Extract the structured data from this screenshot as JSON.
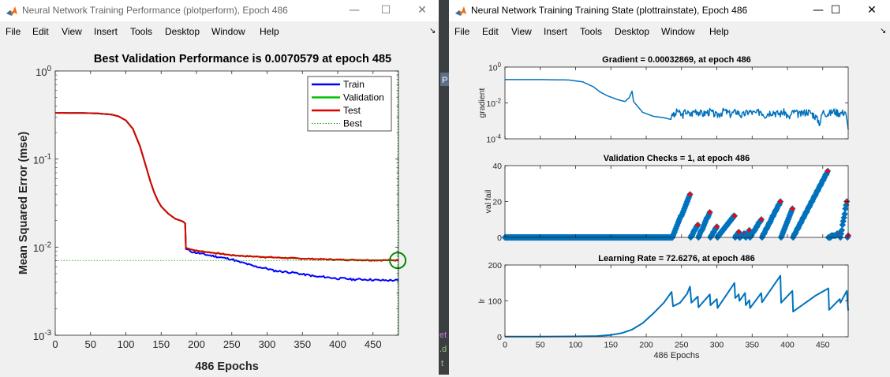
{
  "window1": {
    "title": "Neural Network Training Performance (plotperform), Epoch 486",
    "controls": {
      "minimize": "—",
      "maximize": "☐",
      "close": "✕"
    },
    "menu": [
      "File",
      "Edit",
      "View",
      "Insert",
      "Tools",
      "Desktop",
      "Window",
      "Help"
    ],
    "dock_arrow": "↘"
  },
  "window2": {
    "title": "Neural Network Training Training State (plottrainstate), Epoch 486",
    "controls": {
      "minimize": "—",
      "maximize": "☐",
      "close": "✕"
    },
    "menu": [
      "File",
      "Edit",
      "View",
      "Insert",
      "Tools",
      "Desktop",
      "Window",
      "Help"
    ],
    "dock_arrow": "↘"
  },
  "background_window_fragments": [
    "P",
    "et",
    ".d",
    "t"
  ],
  "chart_data": [
    {
      "type": "line",
      "title": "Best Validation Performance is 0.0070579 at epoch 485",
      "xlabel": "486 Epochs",
      "ylabel": "Mean Squared Error  (mse)",
      "xlim": [
        0,
        486
      ],
      "ylim": [
        0.001,
        1
      ],
      "yscale": "log",
      "x_ticks": [
        0,
        50,
        100,
        150,
        200,
        250,
        300,
        350,
        400,
        450
      ],
      "y_ticks": [
        {
          "value": 1,
          "base": "10",
          "exp": "0"
        },
        {
          "value": 0.1,
          "base": "10",
          "exp": "-1"
        },
        {
          "value": 0.01,
          "base": "10",
          "exp": "-2"
        },
        {
          "value": 0.001,
          "base": "10",
          "exp": "-3"
        }
      ],
      "legend_position": "top-right",
      "series": [
        {
          "name": "Train",
          "color": "#0000ff",
          "points": [
            [
              0,
              0.335
            ],
            [
              20,
              0.334
            ],
            [
              40,
              0.333
            ],
            [
              60,
              0.33
            ],
            [
              80,
              0.32
            ],
            [
              90,
              0.305
            ],
            [
              100,
              0.275
            ],
            [
              110,
              0.22
            ],
            [
              120,
              0.14
            ],
            [
              130,
              0.075
            ],
            [
              135,
              0.055
            ],
            [
              140,
              0.042
            ],
            [
              145,
              0.034
            ],
            [
              150,
              0.029
            ],
            [
              160,
              0.024
            ],
            [
              170,
              0.021
            ],
            [
              181,
              0.0195
            ],
            [
              184,
              0.0186
            ],
            [
              185,
              0.0095
            ],
            [
              195,
              0.0088
            ],
            [
              210,
              0.0083
            ],
            [
              225,
              0.0079
            ],
            [
              240,
              0.0075
            ],
            [
              250,
              0.0073
            ],
            [
              260,
              0.0068
            ],
            [
              270,
              0.0065
            ],
            [
              280,
              0.0061
            ],
            [
              290,
              0.0059
            ],
            [
              300,
              0.0057
            ],
            [
              310,
              0.0054
            ],
            [
              320,
              0.0053
            ],
            [
              330,
              0.0052
            ],
            [
              340,
              0.0051
            ],
            [
              350,
              0.0049
            ],
            [
              360,
              0.0048
            ],
            [
              370,
              0.0046
            ],
            [
              380,
              0.0046
            ],
            [
              390,
              0.0045
            ],
            [
              400,
              0.0044
            ],
            [
              410,
              0.0044
            ],
            [
              420,
              0.0043
            ],
            [
              440,
              0.0043
            ],
            [
              460,
              0.0042
            ],
            [
              470,
              0.0042
            ],
            [
              486,
              0.0042
            ]
          ]
        },
        {
          "name": "Validation",
          "color": "#00c000",
          "points": [
            [
              0,
              0.335
            ],
            [
              20,
              0.334
            ],
            [
              40,
              0.333
            ],
            [
              60,
              0.33
            ],
            [
              80,
              0.32
            ],
            [
              90,
              0.305
            ],
            [
              100,
              0.275
            ],
            [
              110,
              0.22
            ],
            [
              120,
              0.14
            ],
            [
              130,
              0.075
            ],
            [
              135,
              0.055
            ],
            [
              140,
              0.042
            ],
            [
              145,
              0.034
            ],
            [
              150,
              0.029
            ],
            [
              160,
              0.024
            ],
            [
              170,
              0.021
            ],
            [
              181,
              0.0195
            ],
            [
              184,
              0.0186
            ],
            [
              185,
              0.0098
            ],
            [
              200,
              0.0091
            ],
            [
              220,
              0.0087
            ],
            [
              240,
              0.0083
            ],
            [
              250,
              0.0081
            ],
            [
              270,
              0.0079
            ],
            [
              300,
              0.0077
            ],
            [
              350,
              0.0074
            ],
            [
              400,
              0.0072
            ],
            [
              450,
              0.0071
            ],
            [
              486,
              0.0071
            ]
          ]
        },
        {
          "name": "Test",
          "color": "#e00000",
          "points": [
            [
              0,
              0.335
            ],
            [
              20,
              0.334
            ],
            [
              40,
              0.333
            ],
            [
              60,
              0.33
            ],
            [
              80,
              0.32
            ],
            [
              90,
              0.305
            ],
            [
              100,
              0.275
            ],
            [
              110,
              0.22
            ],
            [
              120,
              0.14
            ],
            [
              130,
              0.075
            ],
            [
              135,
              0.055
            ],
            [
              140,
              0.042
            ],
            [
              145,
              0.034
            ],
            [
              150,
              0.029
            ],
            [
              160,
              0.024
            ],
            [
              170,
              0.021
            ],
            [
              181,
              0.0195
            ],
            [
              184,
              0.0186
            ],
            [
              185,
              0.0098
            ],
            [
              200,
              0.0091
            ],
            [
              220,
              0.0087
            ],
            [
              240,
              0.0083
            ],
            [
              250,
              0.0081
            ],
            [
              270,
              0.0079
            ],
            [
              300,
              0.0077
            ],
            [
              350,
              0.0074
            ],
            [
              400,
              0.0072
            ],
            [
              450,
              0.0071
            ],
            [
              486,
              0.0071
            ]
          ]
        }
      ],
      "best": {
        "name": "Best",
        "epoch": 485,
        "value": 0.0070579,
        "color": "#00a000"
      }
    },
    {
      "type": "line",
      "title": "Gradient = 0.00032869, at epoch 486",
      "ylabel": "gradient",
      "xlim": [
        0,
        486
      ],
      "ylim": [
        0.0001,
        1
      ],
      "yscale": "log",
      "y_ticks": [
        {
          "value": 1,
          "base": "10",
          "exp": "0"
        },
        {
          "value": 0.01,
          "base": "10",
          "exp": "-2"
        },
        {
          "value": 0.0001,
          "base": "10",
          "exp": "-4"
        }
      ],
      "series": [
        {
          "color": "#0072bd",
          "points": [
            [
              0,
              0.2
            ],
            [
              50,
              0.2
            ],
            [
              90,
              0.19
            ],
            [
              110,
              0.15
            ],
            [
              125,
              0.08
            ],
            [
              135,
              0.04
            ],
            [
              145,
              0.025
            ],
            [
              160,
              0.015
            ],
            [
              170,
              0.012
            ],
            [
              176,
              0.02
            ],
            [
              180,
              0.045
            ],
            [
              182,
              0.012
            ],
            [
              195,
              0.003
            ],
            [
              210,
              0.0018
            ],
            [
              225,
              0.0015
            ],
            [
              235,
              0.0012
            ],
            [
              237,
              0.003
            ],
            [
              240,
              0.0018
            ],
            [
              244,
              0.004
            ],
            [
              250,
              0.002
            ],
            [
              256,
              0.0035
            ],
            [
              262,
              0.0022
            ],
            [
              270,
              0.004
            ],
            [
              280,
              0.0025
            ],
            [
              290,
              0.0035
            ],
            [
              300,
              0.0021
            ],
            [
              310,
              0.0038
            ],
            [
              320,
              0.0024
            ],
            [
              328,
              0.0036
            ],
            [
              335,
              0.002
            ],
            [
              345,
              0.0034
            ],
            [
              355,
              0.0026
            ],
            [
              362,
              0.0038
            ],
            [
              368,
              0.0022
            ],
            [
              378,
              0.0036
            ],
            [
              388,
              0.0025
            ],
            [
              396,
              0.0034
            ],
            [
              402,
              0.0014
            ],
            [
              408,
              0.0033
            ],
            [
              418,
              0.0024
            ],
            [
              428,
              0.0036
            ],
            [
              438,
              0.0022
            ],
            [
              446,
              0.0008
            ],
            [
              450,
              0.0033
            ],
            [
              458,
              0.0026
            ],
            [
              466,
              0.0036
            ],
            [
              476,
              0.0028
            ],
            [
              482,
              0.0035
            ],
            [
              486,
              0.00033
            ]
          ]
        }
      ]
    },
    {
      "type": "scatter",
      "title": "Validation Checks = 1, at epoch 486",
      "ylabel": "val fail",
      "xlim": [
        0,
        486
      ],
      "ylim": [
        0,
        40
      ],
      "y_ticks": [
        0,
        20,
        40
      ],
      "segments": [
        [
          0,
          237,
          0
        ],
        [
          237,
          262,
          24
        ],
        [
          263,
          273,
          7
        ],
        [
          274,
          290,
          14
        ],
        [
          291,
          300,
          6
        ],
        [
          301,
          325,
          12
        ],
        [
          326,
          331,
          3
        ],
        [
          332,
          340,
          2
        ],
        [
          341,
          346,
          4
        ],
        [
          347,
          363,
          10
        ],
        [
          364,
          390,
          20
        ],
        [
          391,
          407,
          16
        ],
        [
          408,
          457,
          37
        ],
        [
          458,
          474,
          2
        ],
        [
          475,
          484,
          20
        ],
        [
          485,
          486,
          1
        ]
      ],
      "series": [
        {
          "marker_color": "#0072bd",
          "highlight_color": "#ff0000"
        }
      ]
    },
    {
      "type": "line",
      "title": "Learning Rate = 72.6276, at epoch 486",
      "xlabel": "486 Epochs",
      "ylabel": "lr",
      "xlim": [
        0,
        486
      ],
      "ylim": [
        0,
        200
      ],
      "x_ticks": [
        0,
        50,
        100,
        150,
        200,
        250,
        300,
        350,
        400,
        450
      ],
      "y_ticks": [
        0,
        100,
        200
      ],
      "series": [
        {
          "color": "#0072bd",
          "points": [
            [
              0,
              0.5
            ],
            [
              50,
              0.6
            ],
            [
              100,
              1
            ],
            [
              130,
              2
            ],
            [
              150,
              5
            ],
            [
              165,
              10
            ],
            [
              180,
              20
            ],
            [
              195,
              38
            ],
            [
              210,
              65
            ],
            [
              225,
              95
            ],
            [
              236,
              125
            ],
            [
              238,
              85
            ],
            [
              248,
              95
            ],
            [
              258,
              120
            ],
            [
              262,
              140
            ],
            [
              264,
              95
            ],
            [
              273,
              112
            ],
            [
              274,
              82
            ],
            [
              290,
              118
            ],
            [
              291,
              88
            ],
            [
              300,
              105
            ],
            [
              301,
              80
            ],
            [
              325,
              150
            ],
            [
              326,
              108
            ],
            [
              331,
              118
            ],
            [
              332,
              100
            ],
            [
              340,
              122
            ],
            [
              341,
              88
            ],
            [
              346,
              102
            ],
            [
              347,
              80
            ],
            [
              363,
              122
            ],
            [
              364,
              96
            ],
            [
              390,
              170
            ],
            [
              391,
              95
            ],
            [
              407,
              128
            ],
            [
              408,
              70
            ],
            [
              440,
              115
            ],
            [
              458,
              135
            ],
            [
              459,
              75
            ],
            [
              474,
              105
            ],
            [
              475,
              95
            ],
            [
              484,
              128
            ],
            [
              486,
              73
            ]
          ]
        }
      ]
    }
  ]
}
